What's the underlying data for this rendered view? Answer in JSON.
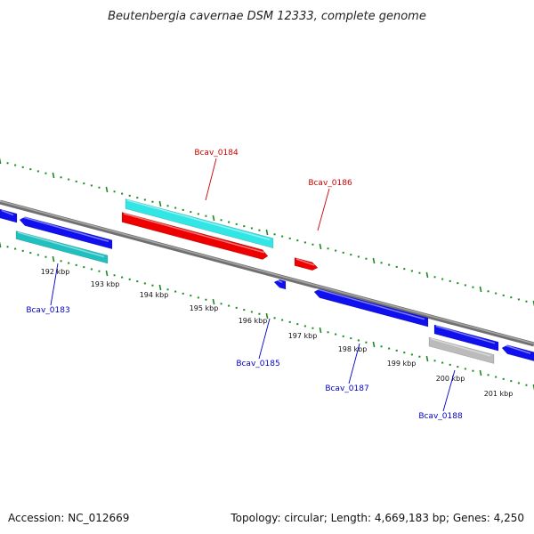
{
  "title": "Beutenbergia cavernae DSM 12333, complete genome",
  "footer": {
    "accession": "Accession: NC_012669",
    "summary": "Topology: circular; Length: 4,669,183 bp; Genes: 4,250"
  },
  "ticks": [
    "192 kbp",
    "193 kbp",
    "194 kbp",
    "195 kbp",
    "196 kbp",
    "197 kbp",
    "198 kbp",
    "199 kbp",
    "200 kbp",
    "201 kbp"
  ],
  "genes": [
    {
      "name": "Bcav_0183",
      "color": "#0000cc"
    },
    {
      "name": "Bcav_0184",
      "color": "#cc0000"
    },
    {
      "name": "Bcav_0185",
      "color": "#0000cc"
    },
    {
      "name": "Bcav_0186",
      "color": "#cc0000"
    },
    {
      "name": "Bcav_0187",
      "color": "#0000cc"
    },
    {
      "name": "Bcav_0188",
      "color": "#0000cc"
    }
  ],
  "colors": {
    "forward_cds": "#ee0000",
    "reverse_cds": "#1010ee",
    "forward_gene": "#33e6e6",
    "reverse_gene": "#20c0c0",
    "pseudo_gene": "#bbbbbb",
    "backbone": "#808080",
    "tick": "#1a8a1a"
  }
}
